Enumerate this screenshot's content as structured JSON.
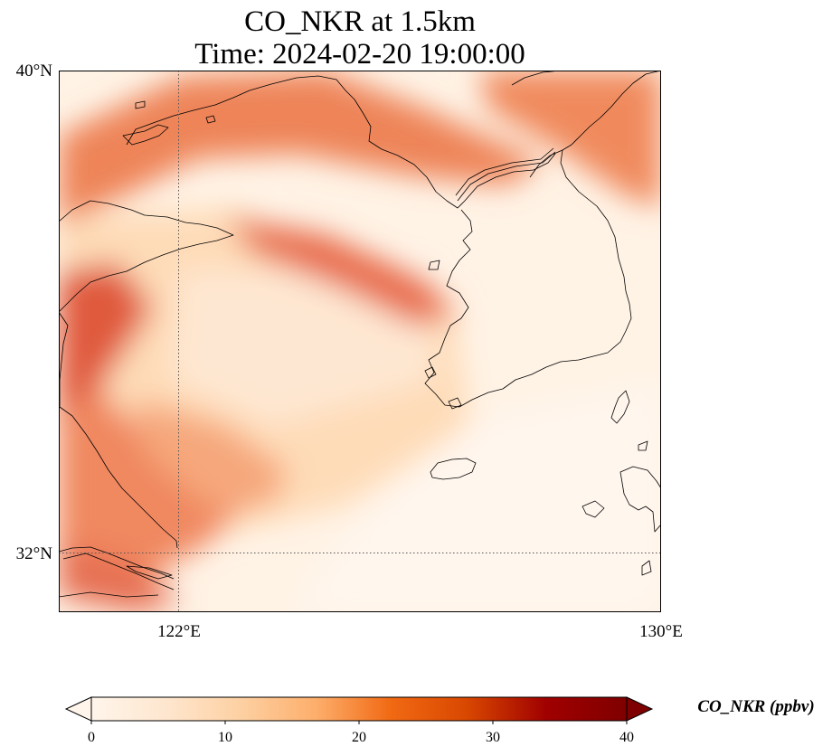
{
  "title": {
    "line1": "CO_NKR at 1.5km",
    "line2": "Time: 2024-02-20 19:00:00"
  },
  "map": {
    "extent": {
      "lon_min": 119.0,
      "lon_max": 130.0,
      "lat_min": 31.0,
      "lat_max": 40.0
    },
    "lat_ticks": [
      {
        "value": 40,
        "label": "40°N"
      },
      {
        "value": 32,
        "label": "32°N"
      }
    ],
    "lon_ticks": [
      {
        "value": 122,
        "label": "122°E"
      },
      {
        "value": 130,
        "label": "130°E"
      }
    ],
    "gridlines": {
      "lon": [
        122
      ],
      "lat": [
        32
      ],
      "style": "dotted"
    },
    "field": "CO_NKR concentration, reddish-orange plumes over the Yellow Sea and eastern China coast, light over the East China Sea"
  },
  "colorbar": {
    "label": "CO_NKR (ppbv)",
    "min": 0,
    "max": 40,
    "ticks": [
      0,
      10,
      20,
      30,
      40
    ],
    "colormap": [
      "#fff5eb",
      "#fee6ce",
      "#fdd0a2",
      "#fdae6b",
      "#f16913",
      "#d94801",
      "#a00000",
      "#7f0000"
    ],
    "extend": "both"
  },
  "colors": {
    "low": "#fff5eb",
    "mid": "#fdd0a2",
    "high": "#e0553a",
    "coastline": "#000000"
  }
}
